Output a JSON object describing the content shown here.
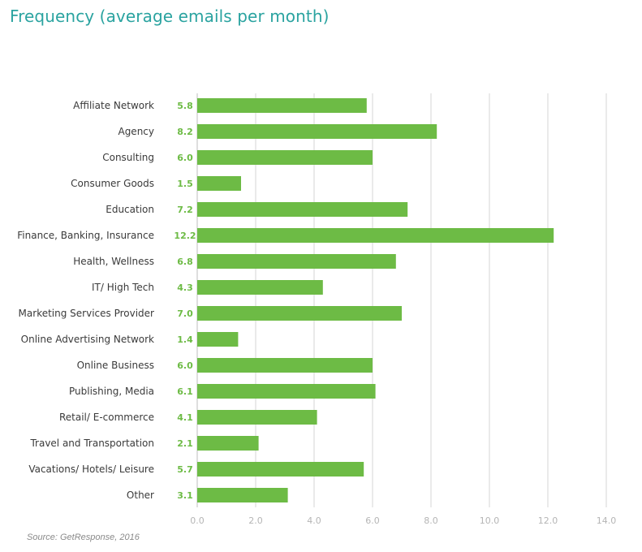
{
  "chart_data": {
    "type": "bar",
    "orientation": "horizontal",
    "title": "Frequency (average emails per month)",
    "categories": [
      "Affiliate Network",
      "Agency",
      "Consulting",
      "Consumer Goods",
      "Education",
      "Finance, Banking, Insurance",
      "Health, Wellness",
      "IT/ High Tech",
      "Marketing Services Provider",
      "Online Advertising Network",
      "Online Business",
      "Publishing, Media",
      "Retail/ E-commerce",
      "Travel and Transportation",
      "Vacations/ Hotels/ Leisure",
      "Other"
    ],
    "values": [
      5.8,
      8.2,
      6.0,
      1.5,
      7.2,
      12.2,
      6.8,
      4.3,
      7.0,
      1.4,
      6.0,
      6.1,
      4.1,
      2.1,
      5.7,
      3.1
    ],
    "value_labels": [
      "5.8",
      "8.2",
      "6.0",
      "1.5",
      "7.2",
      "12.2",
      "6.8",
      "4.3",
      "7.0",
      "1.4",
      "6.0",
      "6.1",
      "4.1",
      "2.1",
      "5.7",
      "3.1"
    ],
    "xlim": [
      0,
      14
    ],
    "xticks": [
      "0.0",
      "2.0",
      "4.0",
      "6.0",
      "8.0",
      "10.0",
      "12.0",
      "14.0"
    ],
    "grid": true,
    "xlabel": "",
    "ylabel": "",
    "bar_color": "#6dbb45",
    "title_color": "#2aa3a0",
    "source": "Source: GetResponse, 2016"
  }
}
